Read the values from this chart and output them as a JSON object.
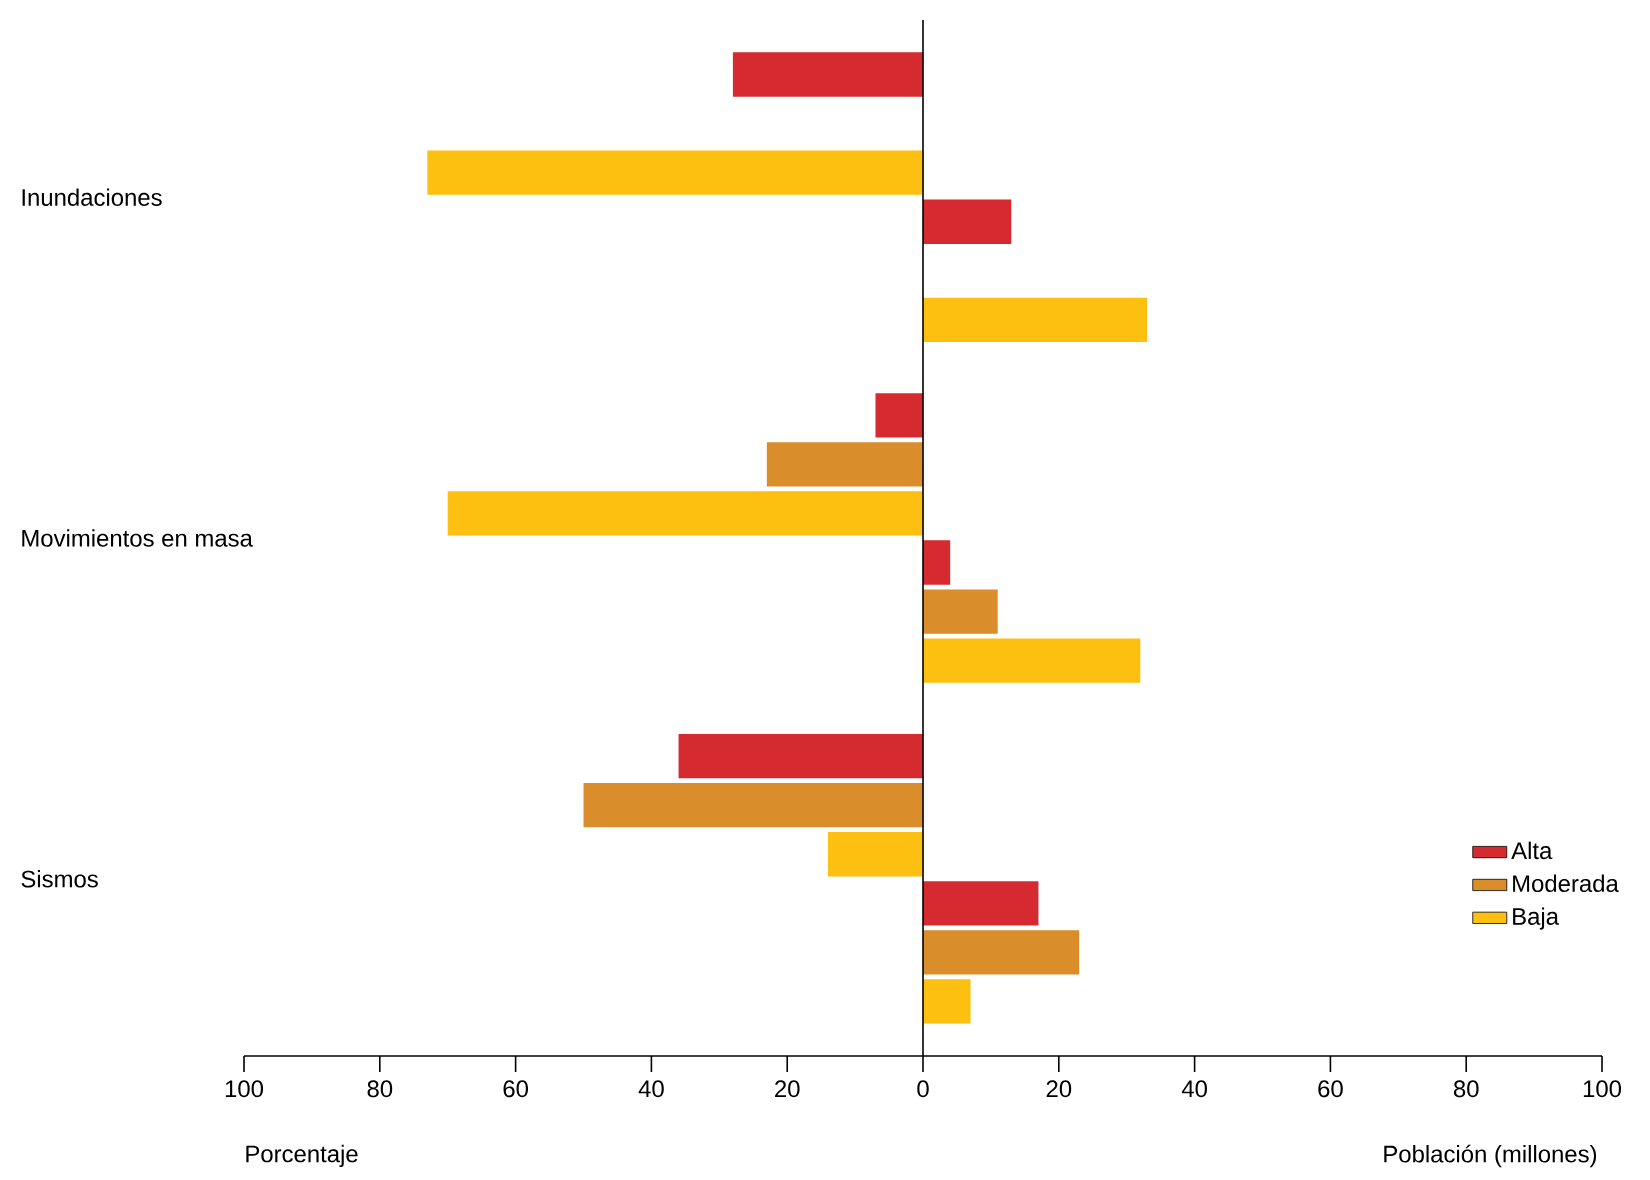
{
  "chart_data": {
    "type": "bar",
    "orientation": "horizontal",
    "categories": [
      "Inundaciones",
      "Movimientos en masa",
      "Sismos"
    ],
    "series": [
      {
        "name": "Alta",
        "color": "#d52b30",
        "values": [
          -28,
          -7,
          -36
        ]
      },
      {
        "name": "Moderada",
        "color": "#d98e2b",
        "values": [
          null,
          -23,
          -50
        ]
      },
      {
        "name": "Baja",
        "color": "#fdc010",
        "values": [
          -73,
          -70,
          -14
        ]
      },
      {
        "color": "#d52b30",
        "values": [
          13,
          4,
          17
        ]
      },
      {
        "color": "#d98e2b",
        "values": [
          null,
          11,
          23
        ]
      },
      {
        "color": "#fdc010",
        "values": [
          33,
          32,
          7
        ]
      }
    ],
    "xlim": [
      -100,
      100
    ],
    "xticks": [
      {
        "value": -100,
        "label": "100"
      },
      {
        "value": -80,
        "label": "80"
      },
      {
        "value": -60,
        "label": "60"
      },
      {
        "value": -40,
        "label": "40"
      },
      {
        "value": -20,
        "label": "20"
      },
      0,
      20,
      40,
      60,
      80,
      100
    ],
    "legend": "bottom right",
    "annotations": [
      "Porcentaje",
      "Población (millones)"
    ]
  }
}
